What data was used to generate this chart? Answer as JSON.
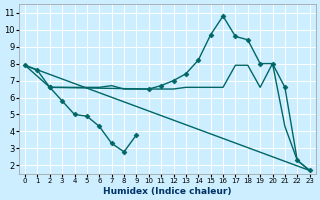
{
  "xlabel": "Humidex (Indice chaleur)",
  "background_color": "#cceeff",
  "grid_color": "#aaddcc",
  "line_color": "#006666",
  "xlim": [
    -0.5,
    23.5
  ],
  "ylim": [
    1.5,
    11.5
  ],
  "xticks": [
    0,
    1,
    2,
    3,
    4,
    5,
    6,
    7,
    8,
    9,
    10,
    11,
    12,
    13,
    14,
    15,
    16,
    17,
    18,
    19,
    20,
    21,
    22,
    23
  ],
  "yticks": [
    2,
    3,
    4,
    5,
    6,
    7,
    8,
    9,
    10,
    11
  ],
  "series": [
    {
      "x": [
        0,
        1,
        2,
        10,
        11,
        12,
        13,
        14,
        15,
        16,
        17,
        18,
        19,
        20,
        21,
        22,
        23
      ],
      "y": [
        7.9,
        7.6,
        6.6,
        6.5,
        6.7,
        7.0,
        7.4,
        8.2,
        9.7,
        10.8,
        9.6,
        9.4,
        8.0,
        8.0,
        6.6,
        2.3,
        1.7
      ],
      "marker": "D",
      "markersize": 2.5,
      "lw": 1.0
    },
    {
      "x": [
        0,
        2,
        3,
        4,
        5,
        6,
        7,
        8,
        9,
        10,
        11,
        12,
        13,
        14,
        15,
        16,
        17,
        18,
        19,
        20,
        21,
        22,
        23
      ],
      "y": [
        7.9,
        6.6,
        6.6,
        6.6,
        6.6,
        6.6,
        6.7,
        6.5,
        6.5,
        6.5,
        6.5,
        6.5,
        6.6,
        6.6,
        6.6,
        6.6,
        7.9,
        7.9,
        6.6,
        8.0,
        4.3,
        2.3,
        1.7
      ],
      "marker": null,
      "markersize": 0,
      "lw": 1.0
    },
    {
      "x": [
        2,
        3,
        4,
        5,
        6,
        7,
        8,
        9
      ],
      "y": [
        6.6,
        5.8,
        5.0,
        4.9,
        4.3,
        3.3,
        2.8,
        3.8
      ],
      "marker": "D",
      "markersize": 2.5,
      "lw": 1.0
    },
    {
      "x": [
        0,
        23
      ],
      "y": [
        7.9,
        1.7
      ],
      "marker": null,
      "markersize": 0,
      "lw": 1.0
    }
  ]
}
